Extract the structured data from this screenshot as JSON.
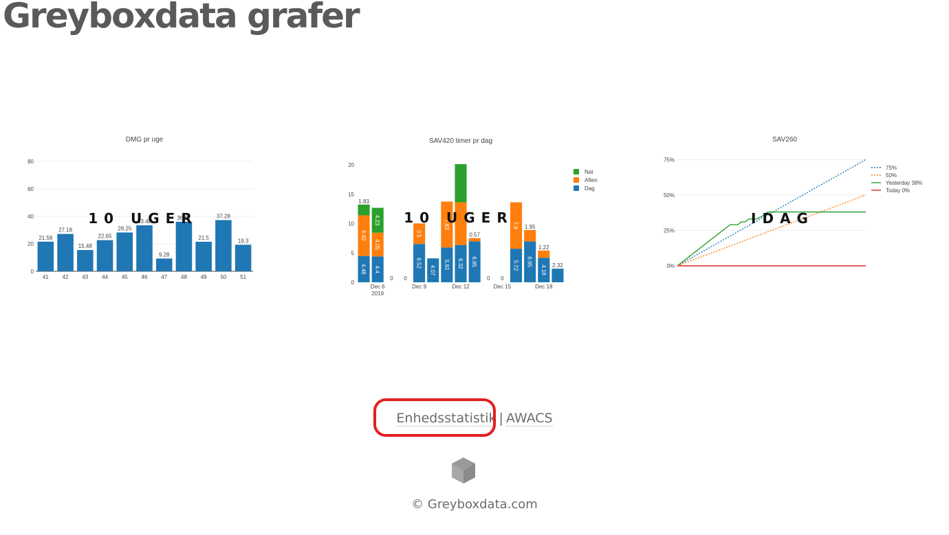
{
  "page": {
    "title": "Greyboxdata grafer",
    "footer_links": [
      "Enhedsstatistik",
      "AWACS"
    ],
    "footer_separator": "|",
    "copyright": "© Greyboxdata.com",
    "logo_icon": "cube-icon"
  },
  "colors": {
    "blue": "#1f77b4",
    "orange": "#ff7f0e",
    "green": "#2ca02c",
    "red": "#d62728"
  },
  "chart_data": [
    {
      "type": "bar",
      "title": "DMG pr uge",
      "overlay": "10 UGER",
      "categories": [
        "41",
        "42",
        "43",
        "44",
        "45",
        "46",
        "47",
        "48",
        "49",
        "50",
        "51"
      ],
      "values": [
        21.58,
        27.18,
        15.48,
        22.65,
        28.25,
        33.48,
        9.28,
        36.07,
        21.5,
        37.28,
        19.3
      ],
      "labels": [
        "21.58",
        "27.18",
        "15.48",
        "22.65",
        "28.25",
        "33.48",
        "9.28",
        "36.07",
        "21.5",
        "37.28",
        "19.3"
      ],
      "yticks": [
        "0",
        "20",
        "40",
        "60",
        "80"
      ],
      "ylim": [
        0,
        80
      ],
      "grid": true
    },
    {
      "type": "bar",
      "stacked": true,
      "title": "SAV420 timer pr dag",
      "overlay": "10 UGER",
      "x": [
        "Dec 5",
        "Dec 6",
        "Dec 7",
        "Dec 8",
        "Dec 9",
        "Dec 10",
        "Dec 11",
        "Dec 12",
        "Dec 13",
        "Dec 14",
        "Dec 15",
        "Dec 16",
        "Dec 17",
        "Dec 18",
        "Dec 19"
      ],
      "xticks": [
        {
          "at": "Dec 6",
          "label": "Dec 6",
          "sub": "2019"
        },
        {
          "at": "Dec 9",
          "label": "Dec 9",
          "sub": ""
        },
        {
          "at": "Dec 12",
          "label": "Dec 12",
          "sub": ""
        },
        {
          "at": "Dec 15",
          "label": "Dec 15",
          "sub": ""
        },
        {
          "at": "Dec 18",
          "label": "Dec 18",
          "sub": ""
        }
      ],
      "yticks": [
        "0",
        "5",
        "10",
        "15",
        "20"
      ],
      "ylim": [
        0,
        20
      ],
      "legend_position": "top-right",
      "series": [
        {
          "name": "Nat",
          "color": "#2ca02c",
          "values": [
            1.83,
            4.23,
            0,
            0,
            0,
            0,
            0,
            6.5,
            0,
            0,
            0,
            0,
            0,
            0,
            0
          ]
        },
        {
          "name": "Aften",
          "color": "#ff7f0e",
          "values": [
            6.92,
            4.05,
            0,
            0,
            3.5,
            0,
            7.83,
            7.3,
            0.57,
            0,
            0,
            7.9,
            1.95,
            1.22,
            0
          ]
        },
        {
          "name": "Dag",
          "color": "#1f77b4",
          "values": [
            4.48,
            4.4,
            0,
            0,
            6.52,
            4.07,
            5.92,
            6.32,
            6.95,
            0,
            0,
            5.72,
            6.95,
            4.18,
            2.32
          ]
        }
      ],
      "labels": {
        "Nat": [
          "1.83",
          "4.23",
          "",
          "",
          "",
          "",
          "",
          "",
          "",
          "",
          "",
          "",
          "",
          "",
          ""
        ],
        "Aften": [
          "6.92",
          "4.05",
          "",
          "",
          "3.5",
          "",
          "7.83",
          "",
          "0.57",
          "",
          "",
          "7.9",
          "1.95",
          "1.22",
          ""
        ],
        "Dag": [
          "4.48",
          "4.4",
          "",
          "",
          "6.52",
          "4.07",
          "5.92",
          "6.32",
          "6.95",
          "",
          "",
          "5.72",
          "6.95",
          "4.18",
          "2.32"
        ]
      },
      "zero_labels": [
        "Dec 7",
        "Dec 8",
        "Dec 14",
        "Dec 15"
      ]
    },
    {
      "type": "line",
      "title": "SAV260",
      "overlay": "IDAG",
      "yticks": [
        "0%",
        "25%",
        "50%",
        "75%"
      ],
      "ylim": [
        0,
        80
      ],
      "grid": true,
      "legend_position": "top-right",
      "series": [
        {
          "name": "75%",
          "color": "#1f77b4",
          "dash": true,
          "points": [
            [
              0,
              0
            ],
            [
              1,
              75
            ]
          ]
        },
        {
          "name": "50%",
          "color": "#ff7f0e",
          "dash": true,
          "points": [
            [
              0,
              0
            ],
            [
              1,
              50
            ]
          ]
        },
        {
          "name": "Yesterday 38%",
          "color": "#2ca02c",
          "dash": false,
          "points": [
            [
              0,
              0
            ],
            [
              0.28,
              29
            ],
            [
              0.32,
              29
            ],
            [
              0.34,
              31
            ],
            [
              0.36,
              31
            ],
            [
              0.38,
              33
            ],
            [
              0.42,
              33
            ],
            [
              0.45,
              35
            ],
            [
              0.48,
              38
            ],
            [
              1,
              38
            ]
          ]
        },
        {
          "name": "Today 0%",
          "color": "#d62728",
          "dash": false,
          "points": [
            [
              0,
              0
            ],
            [
              1,
              0
            ]
          ]
        }
      ]
    }
  ]
}
